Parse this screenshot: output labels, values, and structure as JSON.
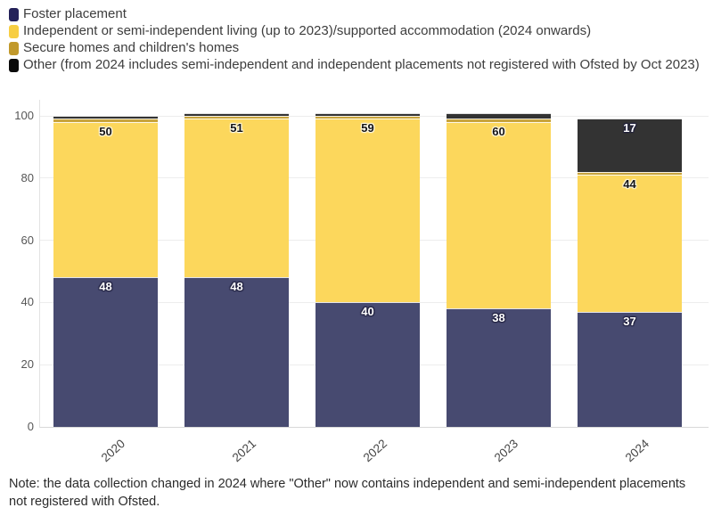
{
  "chart_data": {
    "type": "bar",
    "stacked": true,
    "title": "",
    "xlabel": "",
    "ylabel": "",
    "categories": [
      "2020",
      "2021",
      "2022",
      "2023",
      "2024"
    ],
    "series": [
      {
        "name": "Foster placement",
        "color": "#232159",
        "bar_color": "#474a70",
        "values": [
          48,
          48,
          40,
          38,
          37
        ]
      },
      {
        "name": "Independent or semi-independent living (up to 2023)/supported accommodation (2024 onwards)",
        "color": "#f7ce43",
        "bar_color": "#fcd75c",
        "values": [
          50,
          51,
          59,
          60,
          44
        ]
      },
      {
        "name": "Secure homes and children's homes",
        "color": "#c1992b",
        "bar_color": "#c9a43c",
        "values": [
          1,
          1,
          1,
          1,
          1
        ]
      },
      {
        "name": "Other (from 2024 includes semi-independent and independent placements not registered with Ofsted by Oct 2023)",
        "color": "#0b0b0b",
        "bar_color": "#333333",
        "values": [
          1,
          1,
          1,
          2,
          17
        ]
      }
    ],
    "shown_bar_labels": {
      "2020": {
        "Foster placement": 48,
        "Independent": 50
      },
      "2021": {
        "Foster placement": 48,
        "Independent": 51
      },
      "2022": {
        "Foster placement": 40,
        "Independent": 59
      },
      "2023": {
        "Foster placement": 38,
        "Independent": 60
      },
      "2024": {
        "Foster placement": 37,
        "Independent": 44,
        "Other": 17
      }
    },
    "y_ticks": [
      0,
      20,
      40,
      60,
      80,
      100
    ],
    "ylim": [
      0,
      105
    ],
    "grid": true,
    "legend_position": "top-left"
  },
  "note": {
    "text": "Note: the data collection changed in 2024 where \"Other\" now contains independent and semi-independent placements not registered with Ofsted."
  }
}
